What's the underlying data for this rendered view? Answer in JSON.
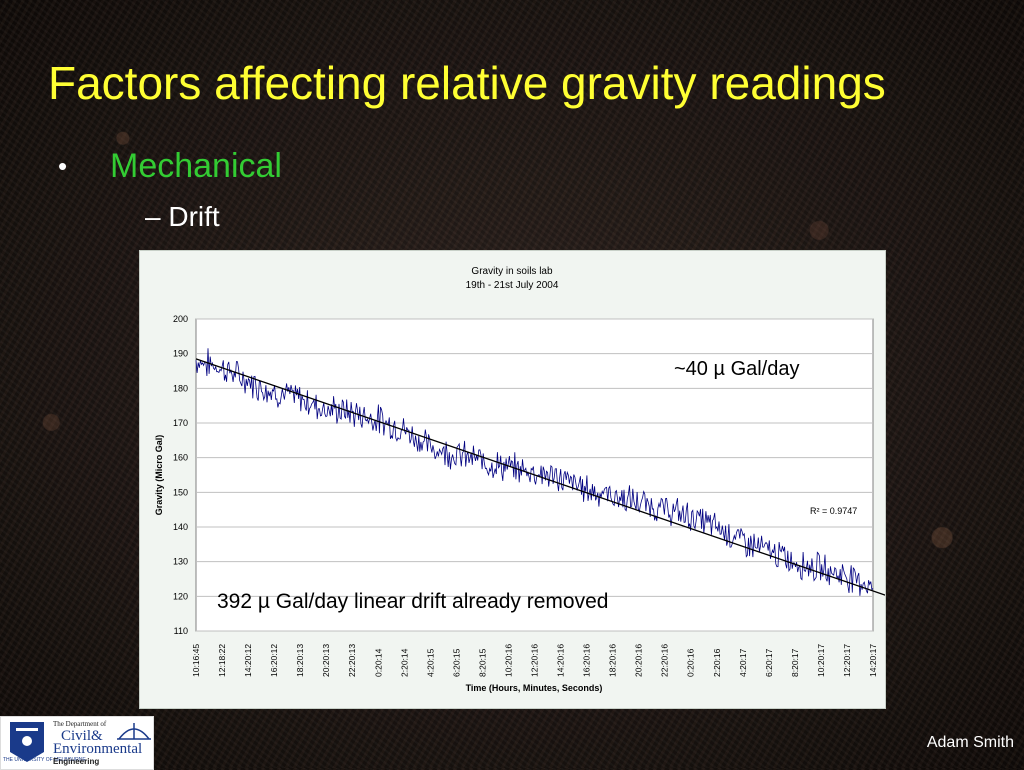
{
  "slide": {
    "title": "Factors affecting relative gravity readings",
    "bullet_marker": "•",
    "bullet1": "Mechanical",
    "bullet2": "– Drift",
    "author": "Adam Smith"
  },
  "logo": {
    "dept_small": "The Department of",
    "civil": "Civil&",
    "environmental": "Environmental",
    "engineering": "Engineering",
    "university": "THE UNIVERSITY OF MELBOURNE"
  },
  "annotations": {
    "rate": "~40 µ Gal/day",
    "removed": "392 µ Gal/day linear drift already removed"
  },
  "chart_data": {
    "type": "line",
    "title": "Gravity in soils lab",
    "subtitle": "19th - 21st July 2004",
    "xlabel": "Time (Hours, Minutes, Seconds)",
    "ylabel": "Gravity (Micro Gal)",
    "ylim": [
      110,
      200
    ],
    "yticks": [
      110,
      120,
      130,
      140,
      150,
      160,
      170,
      180,
      190,
      200
    ],
    "grid": true,
    "categories": [
      "10:16:45",
      "12:18:22",
      "14:20:12",
      "16:20:12",
      "18:20:13",
      "20:20:13",
      "22:20:13",
      "0:20:14",
      "2:20:14",
      "4:20:15",
      "6:20:15",
      "8:20:15",
      "10:20:16",
      "12:20:16",
      "14:20:16",
      "16:20:16",
      "18:20:16",
      "20:20:16",
      "22:20:16",
      "0:20:16",
      "2:20:16",
      "4:20:17",
      "6:20:17",
      "8:20:17",
      "10:20:17",
      "12:20:17",
      "14:20:17"
    ],
    "series": [
      {
        "color": "#000080",
        "values": [
          188,
          186,
          182,
          179,
          177,
          174,
          173,
          171,
          168,
          163,
          161,
          159,
          157,
          156,
          154,
          151,
          149,
          147,
          145,
          143,
          140,
          136,
          133,
          130,
          128,
          126,
          123
        ]
      }
    ],
    "trendline": {
      "start": [
        0,
        188.5
      ],
      "end": [
        26.6,
        120
      ],
      "color": "#000000",
      "label": "R² = 0.9747"
    }
  }
}
